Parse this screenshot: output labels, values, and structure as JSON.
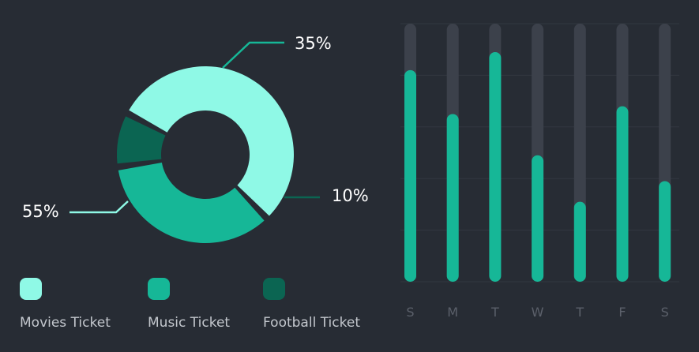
{
  "colors": {
    "background": "#272c34",
    "movies": "#8ff9e6",
    "music": "#16b797",
    "football": "#0b6552",
    "bar_fill": "#16b797",
    "bar_track": "#3c414b",
    "gridline": "#323740",
    "tick": "#5b606a"
  },
  "chart_data": [
    {
      "type": "pie",
      "subtype": "donut",
      "categories": [
        "Movies Ticket",
        "Music Ticket",
        "Football Ticket"
      ],
      "values": [
        55,
        35,
        10
      ],
      "labels": [
        "55%",
        "35%",
        "10%"
      ],
      "legend": "bottom"
    },
    {
      "type": "bar",
      "categories": [
        "S",
        "M",
        "T",
        "W",
        "T",
        "F",
        "S"
      ],
      "values": [
        82,
        65,
        89,
        49,
        31,
        68,
        39
      ],
      "ylim": [
        0,
        100
      ],
      "grid": true
    }
  ]
}
